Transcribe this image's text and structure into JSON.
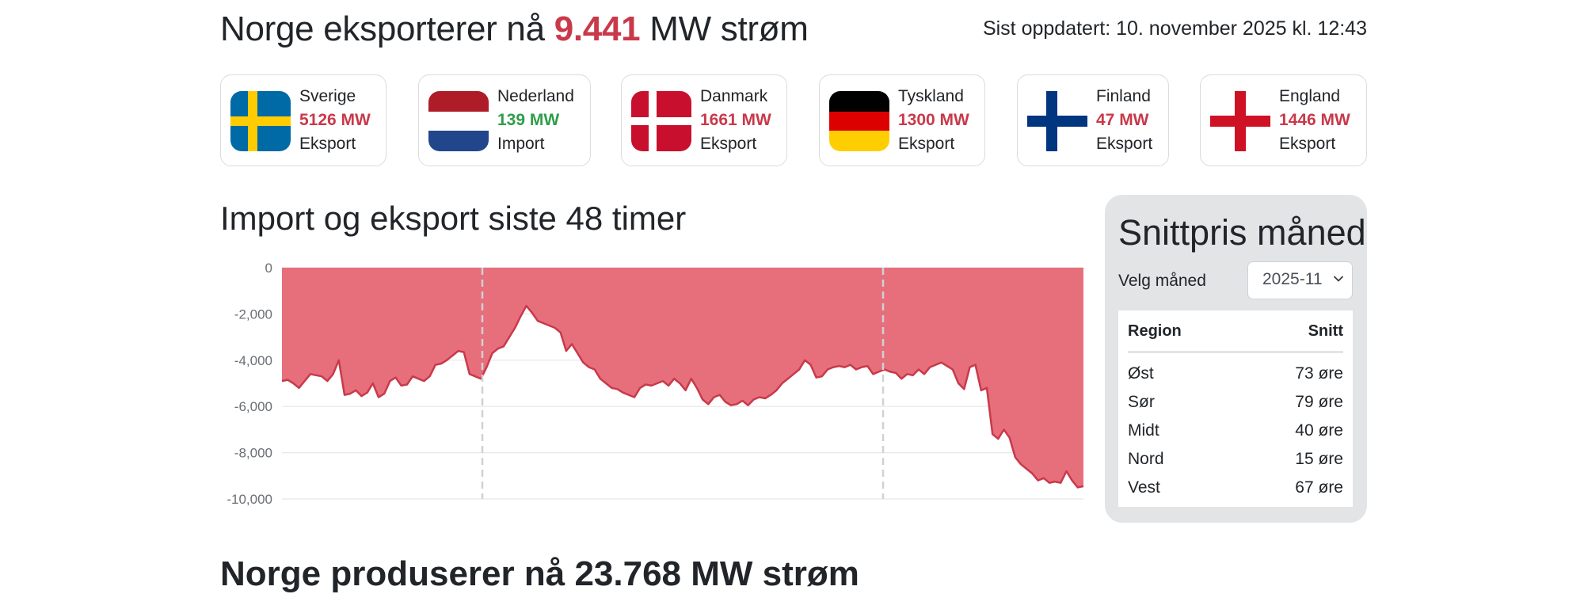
{
  "header": {
    "prefix": "Norge eksporterer nå ",
    "value": "9.441",
    "suffix": " MW strøm",
    "updated": "Sist oppdatert: 10. november 2025 kl. 12:43"
  },
  "countries": [
    {
      "name": "Sverige",
      "mw": "5126 MW",
      "direction": "Eksport",
      "status": "export",
      "flag_icon": "sweden-flag-icon"
    },
    {
      "name": "Nederland",
      "mw": "139 MW",
      "direction": "Import",
      "status": "import",
      "flag_icon": "netherlands-flag-icon"
    },
    {
      "name": "Danmark",
      "mw": "1661 MW",
      "direction": "Eksport",
      "status": "export",
      "flag_icon": "denmark-flag-icon"
    },
    {
      "name": "Tyskland",
      "mw": "1300 MW",
      "direction": "Eksport",
      "status": "export",
      "flag_icon": "germany-flag-icon"
    },
    {
      "name": "Finland",
      "mw": "47 MW",
      "direction": "Eksport",
      "status": "export",
      "flag_icon": "finland-flag-icon"
    },
    {
      "name": "England",
      "mw": "1446 MW",
      "direction": "Eksport",
      "status": "export",
      "flag_icon": "england-flag-icon"
    }
  ],
  "chart_section": {
    "title": "Import og eksport siste 48 timer"
  },
  "chart_data": {
    "type": "area",
    "title": "",
    "xlabel": "",
    "ylabel": "",
    "ylim": [
      -10000,
      0
    ],
    "yticks": [
      0,
      -2000,
      -4000,
      -6000,
      -8000,
      -10000
    ],
    "ytick_labels": [
      "0",
      "-2,000",
      "-4,000",
      "-6,000",
      "-8,000",
      "-10,000"
    ],
    "grid": true,
    "day_separators_at_hour": [
      12,
      36
    ],
    "series": [
      {
        "values": [
          -4900,
          -4850,
          -5000,
          -5200,
          -4900,
          -4600,
          -4650,
          -4700,
          -4900,
          -4600,
          -4000,
          -5500,
          -5450,
          -5300,
          -5550,
          -5400,
          -5000,
          -5600,
          -5450,
          -4900,
          -4750,
          -5100,
          -5050,
          -4700,
          -4800,
          -4900,
          -4700,
          -4200,
          -4150,
          -4000,
          -3800,
          -3600,
          -3650,
          -4600,
          -4700,
          -4800,
          -4300,
          -3700,
          -3500,
          -3400,
          -3000,
          -2600,
          -2100,
          -1650,
          -1950,
          -2300,
          -2400,
          -2500,
          -2600,
          -2800,
          -3600,
          -3300,
          -3700,
          -4100,
          -4300,
          -4400,
          -4800,
          -5000,
          -5200,
          -5250,
          -5400,
          -5500,
          -5600,
          -5200,
          -5050,
          -5100,
          -5000,
          -4900,
          -5100,
          -4800,
          -5000,
          -5300,
          -4800,
          -5200,
          -5700,
          -5900,
          -5600,
          -5500,
          -5800,
          -5950,
          -5900,
          -5750,
          -5950,
          -5700,
          -5600,
          -5650,
          -5500,
          -5300,
          -5000,
          -4800,
          -4600,
          -4400,
          -4000,
          -4200,
          -4750,
          -4700,
          -4400,
          -4300,
          -4250,
          -4300,
          -4200,
          -4400,
          -4300,
          -4250,
          -4600,
          -4500,
          -4400,
          -4500,
          -4550,
          -4800,
          -4600,
          -4650,
          -4400,
          -4600,
          -4300,
          -4200,
          -4100,
          -4250,
          -4400,
          -5000,
          -5250,
          -4300,
          -4200,
          -5300,
          -5200,
          -7200,
          -7400,
          -7000,
          -7350,
          -8200,
          -8500,
          -8700,
          -8900,
          -9200,
          -9100,
          -9300,
          -9250,
          -9300,
          -8800,
          -9200,
          -9500,
          -9450
        ]
      }
    ]
  },
  "price_panel": {
    "title": "Snittpris måned",
    "select_label": "Velg måned",
    "selected_month": "2025-11",
    "columns": [
      "Region",
      "Snitt"
    ],
    "rows": [
      {
        "region": "Øst",
        "price": "73 øre"
      },
      {
        "region": "Sør",
        "price": "79 øre"
      },
      {
        "region": "Midt",
        "price": "40 øre"
      },
      {
        "region": "Nord",
        "price": "15 øre"
      },
      {
        "region": "Vest",
        "price": "67 øre"
      }
    ]
  },
  "production": {
    "prefix": "Norge produserer nå ",
    "value": "23.768",
    "suffix": " MW strøm"
  },
  "colors": {
    "export_red": "#c9394a",
    "import_green": "#2e9e48",
    "area_fill": "#e66f7b",
    "area_line": "#c9394a"
  }
}
